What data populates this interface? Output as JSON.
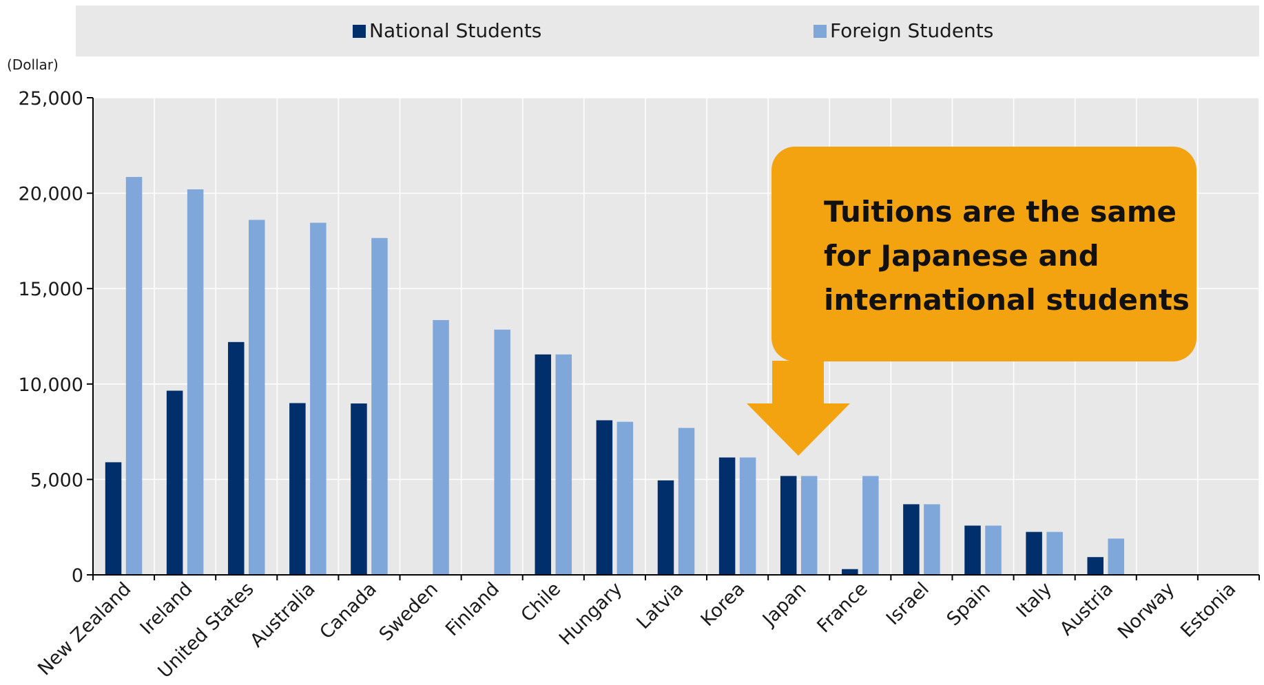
{
  "chart_data": {
    "type": "bar",
    "title": "",
    "ylabel": "(Dollar)",
    "xlabel": "",
    "ylim": [
      0,
      25000
    ],
    "yticks": [
      0,
      5000,
      10000,
      15000,
      20000,
      25000
    ],
    "ytick_labels": [
      "0",
      "5,000",
      "10,000",
      "15,000",
      "20,000",
      "25,000"
    ],
    "grid": true,
    "legend_position": "top",
    "categories": [
      "New Zealand",
      "Ireland",
      "United States",
      "Australia",
      "Canada",
      "Sweden",
      "Finland",
      "Chile",
      "Hungary",
      "Latvia",
      "Korea",
      "Japan",
      "France",
      "Israel",
      "Spain",
      "Italy",
      "Austria",
      "Norway",
      "Estonia"
    ],
    "series": [
      {
        "name": "National Students",
        "color": "#002f6c",
        "values": [
          5900,
          9650,
          12200,
          9000,
          8980,
          0,
          0,
          11550,
          8100,
          4950,
          6150,
          5180,
          300,
          3700,
          2580,
          2250,
          930,
          0,
          0
        ]
      },
      {
        "name": "Foreign Students",
        "color": "#7fa7d9",
        "values": [
          20850,
          20200,
          18600,
          18450,
          17650,
          13350,
          12850,
          11550,
          8020,
          7700,
          6150,
          5180,
          5180,
          3700,
          2580,
          2250,
          1900,
          0,
          0
        ]
      }
    ],
    "annotation": {
      "lines": [
        "Tuitions are the same",
        "for Japanese and",
        "international students"
      ],
      "target_category": "Japan",
      "color": "#f3a30f"
    }
  }
}
